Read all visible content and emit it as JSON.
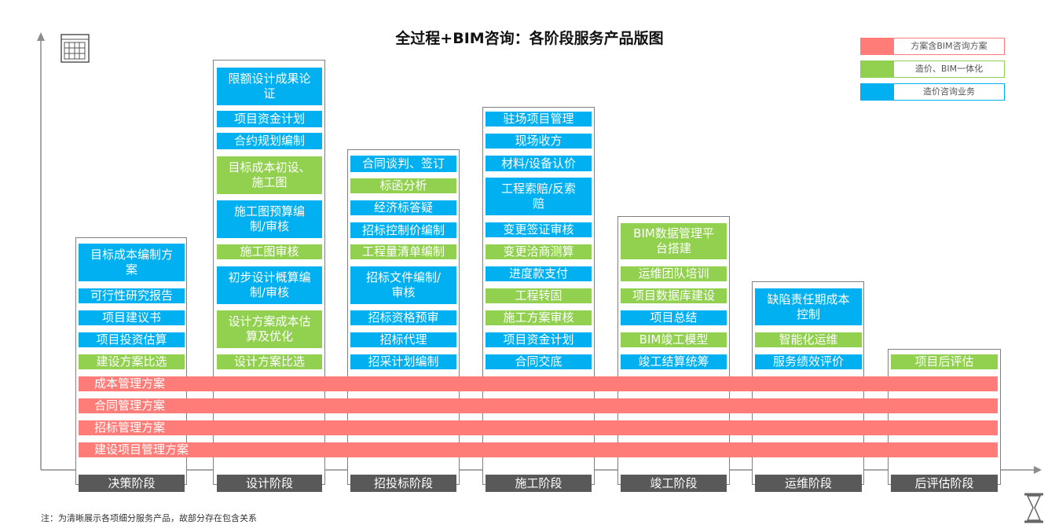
{
  "title": "全过程+BIM咨询：各阶段服务产品版图",
  "colors": {
    "blue": "#00b0f0",
    "green": "#92d050",
    "red": "#ff7c78"
  },
  "legend": [
    {
      "label": "方案含BIM咨询方案",
      "color": "red"
    },
    {
      "label": "造价、BIM一体化",
      "color": "green"
    },
    {
      "label": "造价咨询业务",
      "color": "blue"
    }
  ],
  "stages": [
    {
      "name": "决策阶段",
      "items": [
        {
          "label": "目标成本编制方案",
          "type": "blue"
        },
        {
          "label": "可行性研究报告",
          "type": "blue"
        },
        {
          "label": "项目建议书",
          "type": "blue"
        },
        {
          "label": "项目投资估算",
          "type": "blue"
        },
        {
          "label": "建设方案比选",
          "type": "green"
        }
      ]
    },
    {
      "name": "设计阶段",
      "items": [
        {
          "label": "限额设计成果论证",
          "type": "blue"
        },
        {
          "label": "项目资金计划",
          "type": "blue"
        },
        {
          "label": "合约规划编制",
          "type": "blue"
        },
        {
          "label": "目标成本初设、施工图",
          "type": "green"
        },
        {
          "label": "施工图预算编制/审核",
          "type": "blue"
        },
        {
          "label": "施工图审核",
          "type": "green"
        },
        {
          "label": "初步设计概算编制/审核",
          "type": "blue"
        },
        {
          "label": "设计方案成本估算及优化",
          "type": "green"
        },
        {
          "label": "设计方案比选",
          "type": "green"
        }
      ]
    },
    {
      "name": "招投标阶段",
      "items": [
        {
          "label": "合同谈判、签订",
          "type": "blue"
        },
        {
          "label": "标函分析",
          "type": "green"
        },
        {
          "label": "经济标答疑",
          "type": "blue"
        },
        {
          "label": "招标控制价编制",
          "type": "blue"
        },
        {
          "label": "工程量清单编制",
          "type": "green"
        },
        {
          "label": "招标文件编制/审核",
          "type": "blue"
        },
        {
          "label": "招标资格预审",
          "type": "blue"
        },
        {
          "label": "招标代理",
          "type": "blue"
        },
        {
          "label": "招采计划编制",
          "type": "blue"
        }
      ]
    },
    {
      "name": "施工阶段",
      "items": [
        {
          "label": "驻场项目管理",
          "type": "blue"
        },
        {
          "label": "现场收方",
          "type": "blue"
        },
        {
          "label": "材料/设备认价",
          "type": "blue"
        },
        {
          "label": "工程索赔/反索赔",
          "type": "blue"
        },
        {
          "label": "变更签证审核",
          "type": "blue"
        },
        {
          "label": "变更洽商测算",
          "type": "green"
        },
        {
          "label": "进度款支付",
          "type": "blue"
        },
        {
          "label": "工程转固",
          "type": "green"
        },
        {
          "label": "施工方案审核",
          "type": "green"
        },
        {
          "label": "项目资金计划",
          "type": "blue"
        },
        {
          "label": "合同交底",
          "type": "blue"
        }
      ]
    },
    {
      "name": "竣工阶段",
      "items": [
        {
          "label": "BIM数据管理平台搭建",
          "type": "green"
        },
        {
          "label": "运维团队培训",
          "type": "green"
        },
        {
          "label": "项目数据库建设",
          "type": "green"
        },
        {
          "label": "项目总结",
          "type": "blue"
        },
        {
          "label": "BIM竣工模型",
          "type": "green"
        },
        {
          "label": "竣工结算统筹",
          "type": "blue"
        }
      ]
    },
    {
      "name": "运维阶段",
      "items": [
        {
          "label": "缺陷责任期成本控制",
          "type": "blue"
        },
        {
          "label": "智能化运维",
          "type": "green"
        },
        {
          "label": "服务绩效评价",
          "type": "blue"
        }
      ]
    },
    {
      "name": "后评估阶段",
      "items": [
        {
          "label": "项目后评估",
          "type": "green"
        }
      ]
    }
  ],
  "plans": [
    "成本管理方案",
    "合同管理方案",
    "招标管理方案",
    "建设项目管理方案"
  ],
  "note": "注：为清晰展示各项细分服务产品，故部分存在包含关系"
}
